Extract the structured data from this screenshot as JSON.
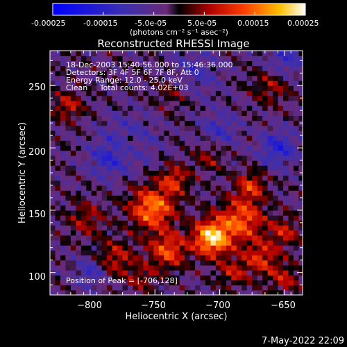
{
  "colorbar": {
    "tick_labels": [
      "-0.00025",
      "-0.00015",
      "-5.0e-05",
      "5.0e-05",
      "0.00015",
      "0.00025"
    ],
    "tick_values": [
      -0.00025,
      -0.00015,
      -5e-05,
      5e-05,
      0.00015,
      0.00025
    ],
    "range": [
      -0.00025,
      0.00025
    ],
    "unit_label": "(photons cm⁻² s⁻¹ asec⁻²)"
  },
  "chart_data": {
    "type": "heatmap",
    "title": "Reconstructed RHESSI Image",
    "xlabel": "Heliocentric X (arcsec)",
    "ylabel": "Heliocentric Y (arcsec)",
    "xlim": [
      -831,
      -636
    ],
    "ylim": [
      82,
      278
    ],
    "x_ticks": [
      -800,
      -750,
      -700,
      -650
    ],
    "x_tick_labels": [
      "−800",
      "−750",
      "−700",
      "−650"
    ],
    "y_ticks": [
      100,
      150,
      200,
      250
    ],
    "y_tick_labels": [
      "100",
      "150",
      "200",
      "250"
    ],
    "info_lines": [
      "18-Dec-2003 15:40:56.000 to 15:46:36.000",
      "Detectors: 3F 4F 5F 6F 7F 8F, Att 0",
      "Energy Range: 12.0 - 25.0 keV",
      "Clean     Total counts: 4.02E+03"
    ],
    "peak_label": "Position of Peak = [-706,128]",
    "peak_position": [
      -706,
      128
    ],
    "blobs": [
      {
        "x": -706,
        "y": 128,
        "amp": 0.00025,
        "sigma": 10
      },
      {
        "x": -752,
        "y": 152,
        "amp": 0.00019,
        "sigma": 12
      },
      {
        "x": -735,
        "y": 175,
        "amp": 0.00012,
        "sigma": 8
      },
      {
        "x": -683,
        "y": 143,
        "amp": 0.00016,
        "sigma": 12
      },
      {
        "x": -676,
        "y": 170,
        "amp": 0.00012,
        "sigma": 8
      },
      {
        "x": -740,
        "y": 118,
        "amp": 0.00015,
        "sigma": 10
      },
      {
        "x": -780,
        "y": 112,
        "amp": 0.0001,
        "sigma": 10
      },
      {
        "x": -668,
        "y": 112,
        "amp": 0.00012,
        "sigma": 10
      },
      {
        "x": -650,
        "y": 133,
        "amp": 0.0001,
        "sigma": 8
      },
      {
        "x": -803,
        "y": 143,
        "amp": 8e-05,
        "sigma": 10
      },
      {
        "x": -770,
        "y": 203,
        "amp": 8e-05,
        "sigma": 8
      },
      {
        "x": -708,
        "y": 193,
        "amp": 7e-05,
        "sigma": 8
      },
      {
        "x": -817,
        "y": 234,
        "amp": 0.0001,
        "sigma": 8
      },
      {
        "x": -690,
        "y": 100,
        "amp": 9e-05,
        "sigma": 8
      },
      {
        "x": -760,
        "y": 96,
        "amp": 7e-05,
        "sigma": 8
      },
      {
        "x": -660,
        "y": 250,
        "amp": 8e-05,
        "sigma": 10
      },
      {
        "x": -736,
        "y": 245,
        "amp": 6e-05,
        "sigma": 10
      },
      {
        "x": -650,
        "y": 95,
        "amp": 9e-05,
        "sigma": 8
      },
      {
        "x": -770,
        "y": 205,
        "amp": -0.0001,
        "sigma": 14
      },
      {
        "x": -788,
        "y": 190,
        "amp": -8e-05,
        "sigma": 10
      },
      {
        "x": -720,
        "y": 260,
        "amp": -7e-05,
        "sigma": 14
      },
      {
        "x": -700,
        "y": 215,
        "amp": -8e-05,
        "sigma": 10
      },
      {
        "x": -655,
        "y": 200,
        "amp": -0.00012,
        "sigma": 10
      },
      {
        "x": -800,
        "y": 100,
        "amp": -9e-05,
        "sigma": 8
      },
      {
        "x": -650,
        "y": 270,
        "amp": -9e-05,
        "sigma": 10
      }
    ]
  },
  "footer": {
    "timestamp": "7-May-2022 22:09"
  }
}
